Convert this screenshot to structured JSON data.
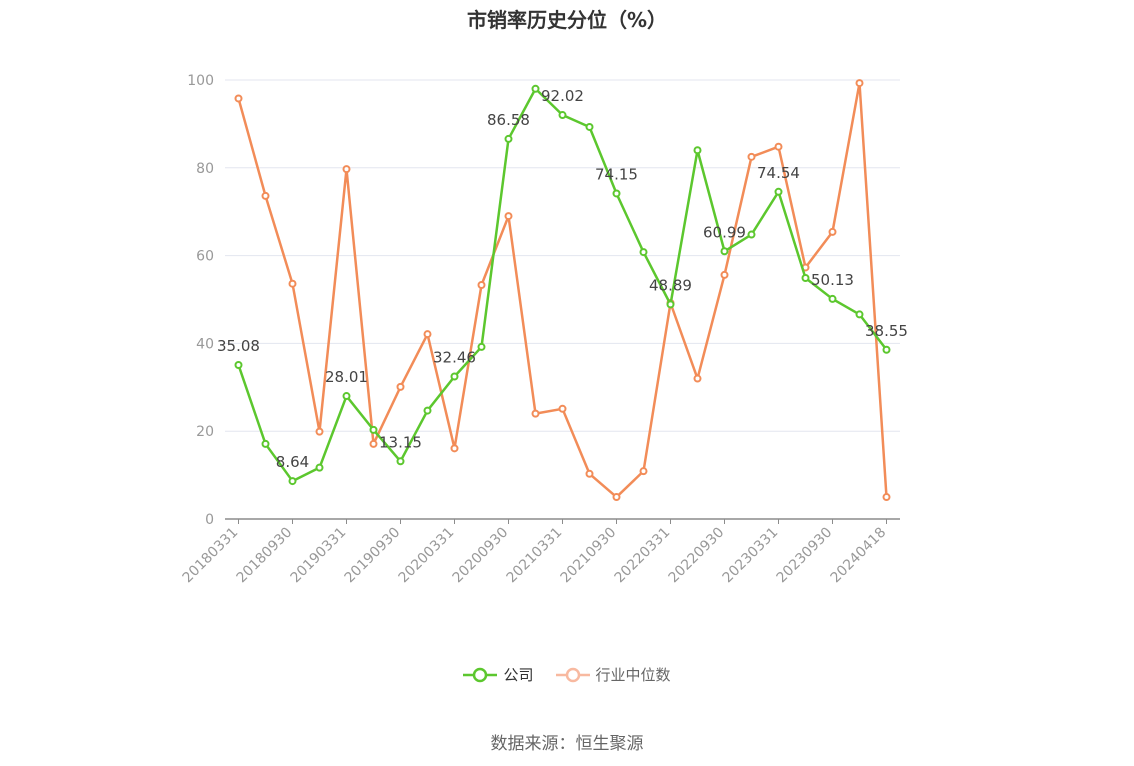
{
  "chart_data": {
    "type": "line",
    "title": "市销率历史分位（%）",
    "xlabel": "",
    "ylabel": "",
    "ylim": [
      0,
      100
    ],
    "yticks": [
      0,
      20,
      40,
      60,
      80,
      100
    ],
    "categories": [
      "20180331",
      "20180630",
      "20180930",
      "20181231",
      "20190331",
      "20190630",
      "20190930",
      "20191231",
      "20200331",
      "20200630",
      "20200930",
      "20201231",
      "20210331",
      "20210630",
      "20210930",
      "20211231",
      "20220331",
      "20220630",
      "20220930",
      "20221231",
      "20230331",
      "20230630",
      "20230930",
      "20231231",
      "20240418"
    ],
    "x_tick_labels": [
      "20180331",
      "20180930",
      "20190331",
      "20190930",
      "20200331",
      "20200930",
      "20210331",
      "20210930",
      "20220331",
      "20220930",
      "20230331",
      "20230930",
      "20240418"
    ],
    "grid": "horizontal",
    "legend_position": "bottom-center",
    "series": [
      {
        "name": "公司",
        "color": "#5cc72e",
        "values": [
          35.08,
          17.1,
          8.64,
          11.7,
          28.01,
          20.3,
          13.15,
          24.7,
          32.46,
          39.2,
          86.58,
          98.0,
          92.02,
          89.3,
          74.15,
          60.8,
          48.89,
          84.0,
          60.99,
          64.8,
          74.54,
          54.9,
          50.13,
          46.6,
          38.55
        ],
        "labels": {
          "0": "35.08",
          "2": "8.64",
          "4": "28.01",
          "6": "13.15",
          "8": "32.46",
          "10": "86.58",
          "12": "92.02",
          "14": "74.15",
          "16": "48.89",
          "18": "60.99",
          "20": "74.54",
          "22": "50.13",
          "24": "38.55"
        }
      },
      {
        "name": "行业中位数",
        "color": "#f28c58",
        "values": [
          95.8,
          73.6,
          53.6,
          19.9,
          79.7,
          17.1,
          30.1,
          42.1,
          16.1,
          53.3,
          69.0,
          24.0,
          25.1,
          10.3,
          5.0,
          10.9,
          49.2,
          32.0,
          55.6,
          82.5,
          84.8,
          57.3,
          65.4,
          99.3,
          5.0
        ]
      }
    ]
  },
  "legend": {
    "company_label": "公司",
    "industry_label": "行业中位数",
    "company_color": "#5cc72e",
    "industry_color": "#f8b9a0"
  },
  "source_text": "数据来源：恒生聚源"
}
